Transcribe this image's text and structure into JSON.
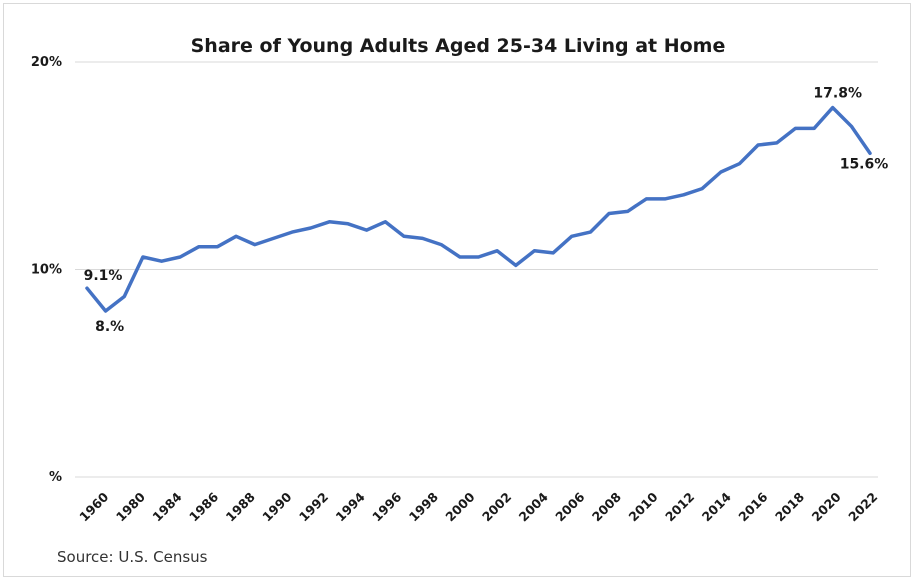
{
  "chart_data": {
    "type": "line",
    "title": "Share of Young Adults Aged 25-34 Living at Home",
    "source": "Source: U.S. Census",
    "y_ticks": [
      "%",
      "10%",
      "20%"
    ],
    "ylim": [
      0,
      20
    ],
    "grid": true,
    "series_color": "#4472c4",
    "x_tick_labels": [
      "1960",
      "1980",
      "1984",
      "1986",
      "1988",
      "1990",
      "1992",
      "1994",
      "1996",
      "1998",
      "2000",
      "2002",
      "2004",
      "2006",
      "2008",
      "2010",
      "2012",
      "2014",
      "2016",
      "2018",
      "2020",
      "2022"
    ],
    "x": [
      "1960",
      "1980",
      "1982",
      "1983",
      "1984",
      "1985",
      "1986",
      "1987",
      "1988",
      "1989",
      "1990",
      "1991",
      "1992",
      "1993",
      "1994",
      "1995",
      "1996",
      "1997",
      "1998",
      "1999",
      "2000",
      "2001",
      "2002",
      "2003",
      "2004",
      "2005",
      "2006",
      "2007",
      "2008",
      "2009",
      "2010",
      "2011",
      "2012",
      "2013",
      "2014",
      "2015",
      "2016",
      "2017",
      "2018",
      "2019",
      "2020",
      "2021",
      "2022"
    ],
    "values": [
      9.1,
      8.0,
      8.7,
      10.6,
      10.4,
      10.6,
      11.1,
      11.1,
      11.6,
      11.2,
      11.5,
      11.8,
      12.0,
      12.3,
      12.2,
      11.9,
      12.3,
      11.6,
      11.5,
      11.2,
      10.6,
      10.6,
      10.9,
      10.2,
      10.9,
      10.8,
      11.6,
      11.8,
      12.7,
      12.8,
      13.4,
      13.4,
      13.6,
      13.9,
      14.7,
      15.1,
      16.0,
      16.1,
      16.8,
      16.8,
      17.8,
      16.9,
      15.6
    ],
    "data_labels": [
      {
        "index": 0,
        "text": "9.1%"
      },
      {
        "index": 1,
        "text": "8.%"
      },
      {
        "index": 40,
        "text": "17.8%"
      },
      {
        "index": 42,
        "text": "15.6%"
      }
    ]
  }
}
